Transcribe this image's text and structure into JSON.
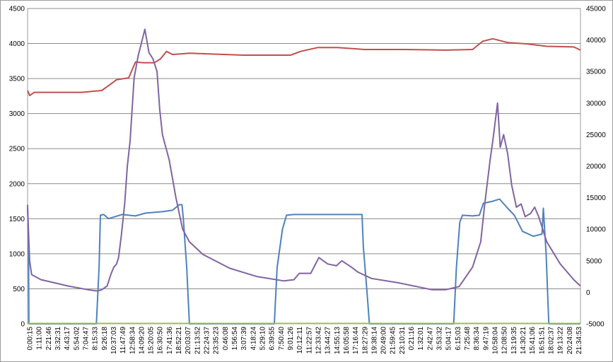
{
  "chart_data": {
    "type": "line",
    "y_left": {
      "min": 0,
      "max": 4500,
      "step": 500,
      "ticks": [
        "0",
        "500",
        "1000",
        "1500",
        "2000",
        "2500",
        "3000",
        "3500",
        "4000",
        "4500"
      ]
    },
    "y_right": {
      "min": -5000,
      "max": 45000,
      "step": 5000,
      "ticks": [
        "-5000",
        "0",
        "5000",
        "10000",
        "15000",
        "20000",
        "25000",
        "30000",
        "35000",
        "40000",
        "45000"
      ]
    },
    "x_tick_labels": [
      "0:00:15",
      "1:11:00",
      "2:21:46",
      "3:32:31",
      "4:43:17",
      "5:54:02",
      "7:04:47",
      "8:15:33",
      "9:26:18",
      "10:37:03",
      "11:47:49",
      "12:58:34",
      "14:09:20",
      "15:20:05",
      "16:30:50",
      "17:41:36",
      "18:52:21",
      "20:03:07",
      "21:13:52",
      "22:24:37",
      "23:35:23",
      "0:46:08",
      "1:56:54",
      "3:07:39",
      "4:18:24",
      "5:29:10",
      "6:39:55",
      "7:50:40",
      "9:01:26",
      "10:12:11",
      "11:22:57",
      "12:33:42",
      "13:44:27",
      "14:55:13",
      "16:05:58",
      "17:16:44",
      "18:27:29",
      "19:38:14",
      "20:49:00",
      "21:59:45",
      "23:10:31",
      "0:21:16",
      "1:32:01",
      "2:42:47",
      "3:53:32",
      "5:04:17",
      "6:15:03",
      "7:25:48",
      "8:36:34",
      "9:47:19",
      "10:58:04",
      "12:08:50",
      "13:19:35",
      "14:30:21",
      "15:41:06",
      "16:51:51",
      "18:02:37",
      "19:13:22",
      "20:24:08",
      "21:34:53"
    ],
    "grid": true,
    "legend": "none",
    "series": [
      {
        "axis": "left",
        "color": "#4F81BD",
        "points": [
          [
            0,
            1700
          ],
          [
            1.5,
            1000
          ],
          [
            2,
            0
          ],
          [
            102,
            0
          ],
          [
            106,
            800
          ],
          [
            108,
            1550
          ],
          [
            113,
            1560
          ],
          [
            120,
            1500
          ],
          [
            140,
            1560
          ],
          [
            160,
            1540
          ],
          [
            175,
            1580
          ],
          [
            200,
            1600
          ],
          [
            215,
            1620
          ],
          [
            225,
            1700
          ],
          [
            229,
            1700
          ],
          [
            231,
            1500
          ],
          [
            236,
            800
          ],
          [
            240,
            0
          ],
          [
            366,
            0
          ],
          [
            370,
            800
          ],
          [
            378,
            1350
          ],
          [
            384,
            1550
          ],
          [
            395,
            1560
          ],
          [
            420,
            1560
          ],
          [
            460,
            1560
          ],
          [
            496,
            1560
          ],
          [
            498,
            1100
          ],
          [
            503,
            500
          ],
          [
            507,
            0
          ],
          [
            632,
            0
          ],
          [
            636,
            800
          ],
          [
            641,
            1450
          ],
          [
            645,
            1550
          ],
          [
            660,
            1540
          ],
          [
            670,
            1550
          ],
          [
            676,
            1720
          ],
          [
            690,
            1750
          ],
          [
            700,
            1780
          ],
          [
            712,
            1650
          ],
          [
            722,
            1550
          ],
          [
            734,
            1320
          ],
          [
            750,
            1250
          ],
          [
            763,
            1280
          ],
          [
            765,
            1650
          ],
          [
            769,
            1000
          ],
          [
            773,
            0
          ],
          [
            820,
            0
          ]
        ]
      },
      {
        "axis": "left",
        "color": "#9BBB59",
        "points": [
          [
            0,
            5
          ],
          [
            820,
            5
          ]
        ]
      },
      {
        "axis": "right",
        "color": "#C0504D",
        "points": [
          [
            0,
            32000
          ],
          [
            3,
            31200
          ],
          [
            10,
            31700
          ],
          [
            80,
            31700
          ],
          [
            110,
            32000
          ],
          [
            118,
            32600
          ],
          [
            132,
            33700
          ],
          [
            150,
            34000
          ],
          [
            160,
            36500
          ],
          [
            172,
            36400
          ],
          [
            188,
            36400
          ],
          [
            197,
            37000
          ],
          [
            206,
            38200
          ],
          [
            215,
            37700
          ],
          [
            240,
            37900
          ],
          [
            320,
            37600
          ],
          [
            390,
            37600
          ],
          [
            405,
            38200
          ],
          [
            430,
            38800
          ],
          [
            460,
            38800
          ],
          [
            500,
            38500
          ],
          [
            560,
            38500
          ],
          [
            620,
            38400
          ],
          [
            660,
            38500
          ],
          [
            675,
            39800
          ],
          [
            690,
            40200
          ],
          [
            712,
            39600
          ],
          [
            740,
            39400
          ],
          [
            770,
            39000
          ],
          [
            810,
            38900
          ],
          [
            820,
            38400
          ]
        ]
      },
      {
        "axis": "right",
        "color": "#8064A2",
        "points": [
          [
            0,
            13500
          ],
          [
            3,
            5000
          ],
          [
            6,
            2800
          ],
          [
            20,
            2000
          ],
          [
            40,
            1500
          ],
          [
            60,
            1000
          ],
          [
            90,
            400
          ],
          [
            104,
            200
          ],
          [
            110,
            400
          ],
          [
            118,
            1000
          ],
          [
            124,
            3000
          ],
          [
            128,
            4000
          ],
          [
            132,
            4500
          ],
          [
            135,
            5500
          ],
          [
            139,
            9000
          ],
          [
            144,
            14000
          ],
          [
            148,
            20000
          ],
          [
            152,
            24000
          ],
          [
            158,
            34000
          ],
          [
            164,
            37500
          ],
          [
            170,
            40000
          ],
          [
            174,
            41700
          ],
          [
            180,
            38000
          ],
          [
            186,
            37000
          ],
          [
            192,
            35000
          ],
          [
            196,
            29000
          ],
          [
            200,
            25000
          ],
          [
            210,
            21000
          ],
          [
            220,
            15000
          ],
          [
            230,
            10000
          ],
          [
            240,
            8000
          ],
          [
            260,
            6000
          ],
          [
            300,
            3800
          ],
          [
            340,
            2500
          ],
          [
            380,
            1800
          ],
          [
            395,
            2000
          ],
          [
            403,
            3000
          ],
          [
            420,
            3000
          ],
          [
            432,
            5500
          ],
          [
            445,
            4500
          ],
          [
            458,
            4200
          ],
          [
            466,
            5000
          ],
          [
            480,
            4000
          ],
          [
            490,
            3200
          ],
          [
            510,
            2200
          ],
          [
            550,
            1500
          ],
          [
            600,
            400
          ],
          [
            620,
            400
          ],
          [
            640,
            900
          ],
          [
            660,
            4000
          ],
          [
            672,
            8000
          ],
          [
            678,
            14000
          ],
          [
            686,
            21000
          ],
          [
            690,
            24000
          ],
          [
            697,
            30000
          ],
          [
            701,
            23000
          ],
          [
            706,
            25000
          ],
          [
            712,
            22000
          ],
          [
            718,
            17000
          ],
          [
            725,
            13500
          ],
          [
            732,
            14000
          ],
          [
            738,
            12000
          ],
          [
            746,
            12500
          ],
          [
            752,
            13500
          ],
          [
            758,
            12000
          ],
          [
            770,
            8000
          ],
          [
            790,
            4500
          ],
          [
            810,
            2000
          ],
          [
            820,
            1000
          ]
        ]
      }
    ]
  }
}
